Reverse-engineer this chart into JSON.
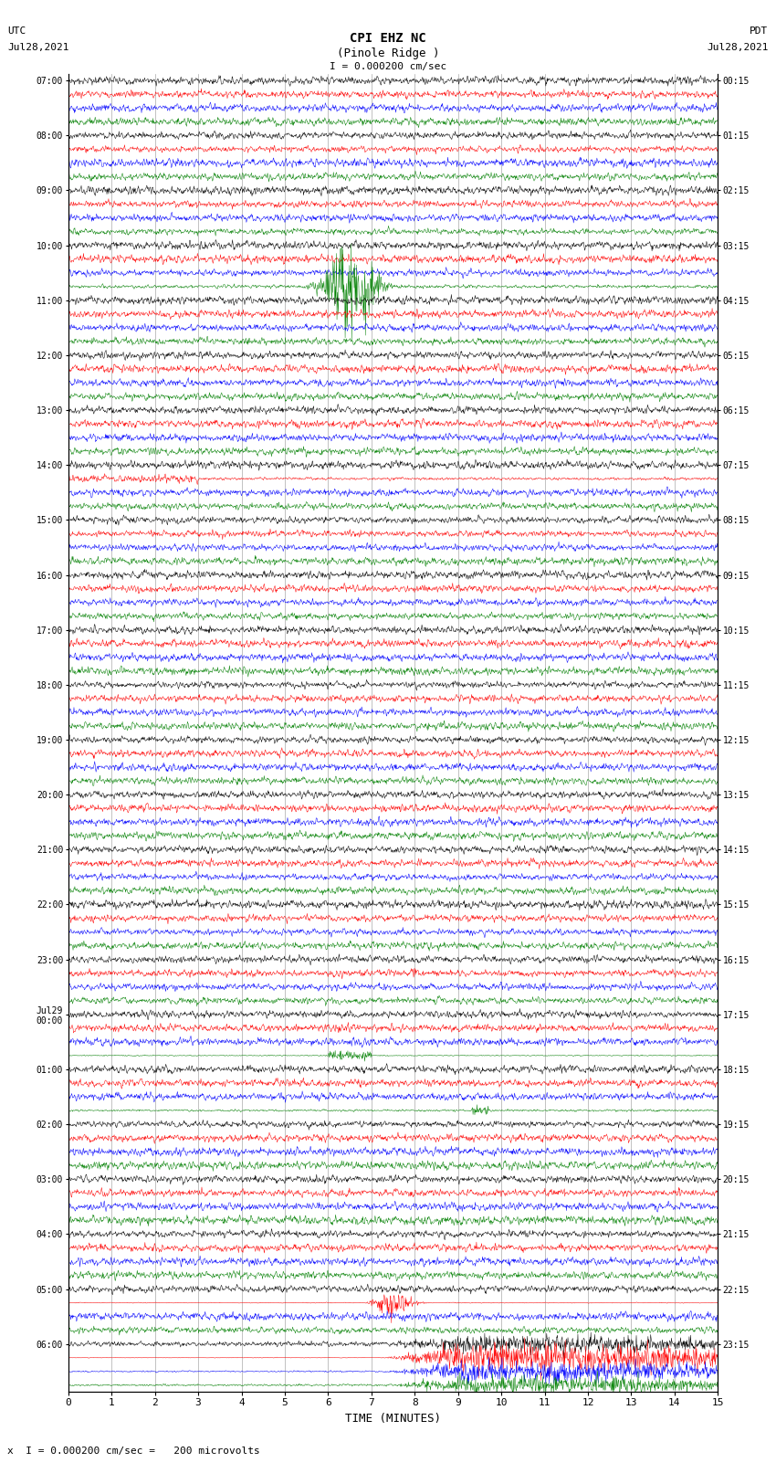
{
  "title_line1": "CPI EHZ NC",
  "title_line2": "(Pinole Ridge )",
  "title_line3": "I = 0.000200 cm/sec",
  "left_header_line1": "UTC",
  "left_header_line2": "Jul28,2021",
  "right_header_line1": "PDT",
  "right_header_line2": "Jul28,2021",
  "footer": "x  I = 0.000200 cm/sec =   200 microvolts",
  "xlabel": "TIME (MINUTES)",
  "utc_labels": [
    "07:00",
    "08:00",
    "09:00",
    "10:00",
    "11:00",
    "12:00",
    "13:00",
    "14:00",
    "15:00",
    "16:00",
    "17:00",
    "18:00",
    "19:00",
    "20:00",
    "21:00",
    "22:00",
    "23:00",
    "Jul29\n00:00",
    "01:00",
    "02:00",
    "03:00",
    "04:00",
    "05:00",
    "06:00"
  ],
  "pdt_labels": [
    "00:15",
    "01:15",
    "02:15",
    "03:15",
    "04:15",
    "05:15",
    "06:15",
    "07:15",
    "08:15",
    "09:15",
    "10:15",
    "11:15",
    "12:15",
    "13:15",
    "14:15",
    "15:15",
    "16:15",
    "17:15",
    "18:15",
    "19:15",
    "20:15",
    "21:15",
    "22:15",
    "23:15"
  ],
  "n_groups": 24,
  "colors_cycle": [
    "black",
    "red",
    "blue",
    "green"
  ],
  "bg_color": "white",
  "xmin": 0,
  "xmax": 15,
  "xticks": [
    0,
    1,
    2,
    3,
    4,
    5,
    6,
    7,
    8,
    9,
    10,
    11,
    12,
    13,
    14,
    15
  ]
}
